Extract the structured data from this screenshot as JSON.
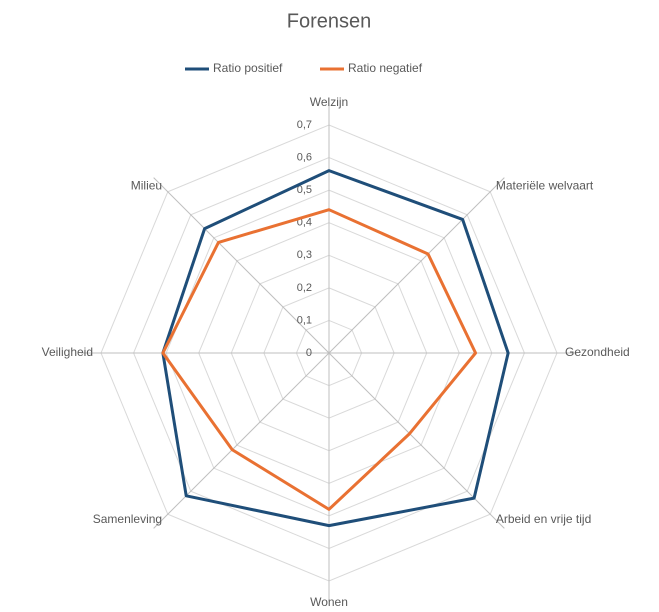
{
  "chart_data": {
    "type": "radar",
    "title": "Forensen",
    "categories": [
      "Welzijn",
      "Materiële welvaart",
      "Gezondheid",
      "Arbeid en vrije tijd",
      "Wonen",
      "Samenleving",
      "Veiligheid",
      "Milieu"
    ],
    "series": [
      {
        "name": "Ratio positief",
        "color": "#1f4e79",
        "values": [
          0.56,
          0.58,
          0.55,
          0.63,
          0.53,
          0.62,
          0.51,
          0.54
        ]
      },
      {
        "name": "Ratio negatief",
        "color": "#e97132",
        "values": [
          0.44,
          0.43,
          0.45,
          0.35,
          0.48,
          0.42,
          0.51,
          0.48
        ]
      }
    ],
    "ylim": [
      0,
      0.7
    ],
    "yticks": [
      0,
      {
        "value": 0.1,
        "label": "0,1"
      },
      {
        "value": 0.2,
        "label": "0,2"
      },
      {
        "value": 0.3,
        "label": "0,3"
      },
      {
        "value": 0.4,
        "label": "0,4"
      },
      {
        "value": 0.5,
        "label": "0,5"
      },
      {
        "value": 0.6,
        "label": "0,6"
      },
      {
        "value": 0.7,
        "label": "0,7"
      }
    ],
    "grid": true,
    "legend": "top"
  }
}
